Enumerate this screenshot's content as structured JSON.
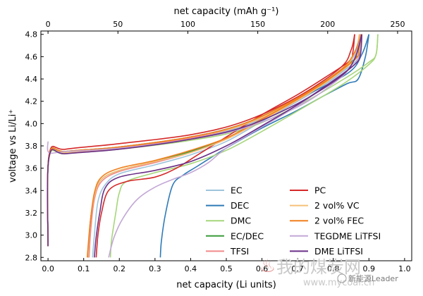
{
  "chart_data": {
    "type": "line",
    "xlabel": "net capacity (Li units)",
    "x2label": "net capacity (mAh g⁻¹)",
    "ylabel": "voltage vs Li/Li⁺",
    "xlim": [
      -0.02,
      1.02
    ],
    "ylim": [
      2.77,
      4.83
    ],
    "x2lim": [
      -5.1,
      260.1
    ],
    "xticks": [
      0.0,
      0.1,
      0.2,
      0.3,
      0.4,
      0.5,
      0.6,
      0.7,
      0.8,
      0.9,
      1.0
    ],
    "xtick_labels": [
      "0.0",
      "0.1",
      "0.2",
      "0.3",
      "0.4",
      "0.5",
      "0.6",
      "0.7",
      "0.8",
      "0.9",
      "1.0"
    ],
    "x2ticks": [
      0,
      50,
      100,
      150,
      200,
      250
    ],
    "x2tick_labels": [
      "0",
      "50",
      "100",
      "150",
      "200",
      "250"
    ],
    "yticks": [
      2.8,
      3.0,
      3.2,
      3.4,
      3.6,
      3.8,
      4.0,
      4.2,
      4.4,
      4.6,
      4.8
    ],
    "ytick_labels": [
      "2.8",
      "3.0",
      "3.2",
      "3.4",
      "3.6",
      "3.8",
      "4.0",
      "4.2",
      "4.4",
      "4.6",
      "4.8"
    ],
    "grid": false,
    "legend_position": "lower-right",
    "legend_columns": 2,
    "series": [
      {
        "name": "EC",
        "color": "#9ec4dc",
        "charge": [
          [
            0,
            2.9
          ],
          [
            0.003,
            3.7
          ],
          [
            0.05,
            3.74
          ],
          [
            0.2,
            3.78
          ],
          [
            0.4,
            3.87
          ],
          [
            0.55,
            3.98
          ],
          [
            0.7,
            4.2
          ],
          [
            0.82,
            4.45
          ],
          [
            0.86,
            4.62
          ],
          [
            0.88,
            4.8
          ]
        ],
        "discharge": [
          [
            0.88,
            4.8
          ],
          [
            0.875,
            4.65
          ],
          [
            0.86,
            4.55
          ],
          [
            0.78,
            4.36
          ],
          [
            0.7,
            4.2
          ],
          [
            0.6,
            4.02
          ],
          [
            0.5,
            3.84
          ],
          [
            0.4,
            3.72
          ],
          [
            0.3,
            3.63
          ],
          [
            0.2,
            3.55
          ],
          [
            0.16,
            3.45
          ],
          [
            0.14,
            3.3
          ],
          [
            0.13,
            3.0
          ],
          [
            0.125,
            2.8
          ]
        ]
      },
      {
        "name": "DEC",
        "color": "#2f7bb8",
        "charge": [
          [
            0,
            2.9
          ],
          [
            0.003,
            3.7
          ],
          [
            0.05,
            3.74
          ],
          [
            0.2,
            3.79
          ],
          [
            0.4,
            3.88
          ],
          [
            0.55,
            4.0
          ],
          [
            0.7,
            4.22
          ],
          [
            0.84,
            4.45
          ],
          [
            0.88,
            4.62
          ],
          [
            0.9,
            4.8
          ]
        ],
        "discharge": [
          [
            0.9,
            4.8
          ],
          [
            0.89,
            4.6
          ],
          [
            0.87,
            4.4
          ],
          [
            0.84,
            4.36
          ],
          [
            0.78,
            4.26
          ],
          [
            0.7,
            4.12
          ],
          [
            0.6,
            3.96
          ],
          [
            0.5,
            3.78
          ],
          [
            0.42,
            3.62
          ],
          [
            0.38,
            3.54
          ],
          [
            0.35,
            3.45
          ],
          [
            0.33,
            3.2
          ],
          [
            0.318,
            2.95
          ],
          [
            0.315,
            2.8
          ]
        ]
      },
      {
        "name": "DMC",
        "color": "#a6d67a",
        "charge": [
          [
            0,
            2.9
          ],
          [
            0.003,
            3.69
          ],
          [
            0.05,
            3.73
          ],
          [
            0.2,
            3.77
          ],
          [
            0.4,
            3.85
          ],
          [
            0.55,
            3.95
          ],
          [
            0.7,
            4.16
          ],
          [
            0.83,
            4.4
          ],
          [
            0.9,
            4.55
          ],
          [
            0.92,
            4.62
          ],
          [
            0.925,
            4.8
          ]
        ],
        "discharge": [
          [
            0.925,
            4.8
          ],
          [
            0.92,
            4.62
          ],
          [
            0.9,
            4.53
          ],
          [
            0.83,
            4.36
          ],
          [
            0.72,
            4.15
          ],
          [
            0.6,
            3.93
          ],
          [
            0.5,
            3.76
          ],
          [
            0.4,
            3.64
          ],
          [
            0.3,
            3.56
          ],
          [
            0.22,
            3.48
          ],
          [
            0.2,
            3.38
          ],
          [
            0.19,
            3.2
          ],
          [
            0.178,
            2.95
          ],
          [
            0.175,
            2.8
          ]
        ]
      },
      {
        "name": "EC/DEC",
        "color": "#3a9a3a",
        "charge": [
          [
            0,
            2.9
          ],
          [
            0.003,
            3.71
          ],
          [
            0.05,
            3.75
          ],
          [
            0.2,
            3.79
          ],
          [
            0.4,
            3.88
          ],
          [
            0.55,
            4.0
          ],
          [
            0.7,
            4.23
          ],
          [
            0.82,
            4.48
          ],
          [
            0.86,
            4.64
          ],
          [
            0.875,
            4.8
          ]
        ],
        "discharge": [
          [
            0.875,
            4.8
          ],
          [
            0.87,
            4.66
          ],
          [
            0.86,
            4.58
          ],
          [
            0.78,
            4.38
          ],
          [
            0.7,
            4.22
          ],
          [
            0.6,
            4.04
          ],
          [
            0.5,
            3.87
          ],
          [
            0.4,
            3.75
          ],
          [
            0.3,
            3.66
          ],
          [
            0.2,
            3.58
          ],
          [
            0.15,
            3.5
          ],
          [
            0.13,
            3.35
          ],
          [
            0.118,
            3.1
          ],
          [
            0.113,
            2.8
          ]
        ]
      },
      {
        "name": "TFSI",
        "color": "#f08a8a",
        "charge": [
          [
            0,
            2.9
          ],
          [
            0.003,
            3.7
          ],
          [
            0.05,
            3.74
          ],
          [
            0.2,
            3.78
          ],
          [
            0.4,
            3.87
          ],
          [
            0.55,
            3.99
          ],
          [
            0.7,
            4.21
          ],
          [
            0.82,
            4.47
          ],
          [
            0.86,
            4.64
          ],
          [
            0.875,
            4.8
          ]
        ],
        "discharge": [
          [
            0.875,
            4.8
          ],
          [
            0.87,
            4.66
          ],
          [
            0.86,
            4.57
          ],
          [
            0.78,
            4.37
          ],
          [
            0.7,
            4.21
          ],
          [
            0.6,
            4.03
          ],
          [
            0.5,
            3.86
          ],
          [
            0.4,
            3.74
          ],
          [
            0.3,
            3.65
          ],
          [
            0.2,
            3.57
          ],
          [
            0.15,
            3.48
          ],
          [
            0.13,
            3.32
          ],
          [
            0.12,
            3.05
          ],
          [
            0.115,
            2.8
          ]
        ]
      },
      {
        "name": "PC",
        "color": "#d62828",
        "charge": [
          [
            0,
            2.9
          ],
          [
            0.003,
            3.72
          ],
          [
            0.05,
            3.77
          ],
          [
            0.2,
            3.82
          ],
          [
            0.4,
            3.9
          ],
          [
            0.55,
            4.02
          ],
          [
            0.7,
            4.24
          ],
          [
            0.82,
            4.5
          ],
          [
            0.85,
            4.66
          ],
          [
            0.86,
            4.8
          ]
        ],
        "discharge": [
          [
            0.86,
            4.8
          ],
          [
            0.855,
            4.64
          ],
          [
            0.845,
            4.56
          ],
          [
            0.78,
            4.42
          ],
          [
            0.7,
            4.26
          ],
          [
            0.6,
            4.08
          ],
          [
            0.5,
            3.88
          ],
          [
            0.42,
            3.72
          ],
          [
            0.36,
            3.6
          ],
          [
            0.3,
            3.52
          ],
          [
            0.22,
            3.48
          ],
          [
            0.17,
            3.4
          ],
          [
            0.15,
            3.2
          ],
          [
            0.14,
            3.0
          ],
          [
            0.135,
            2.8
          ]
        ]
      },
      {
        "name": "2 vol% VC",
        "color": "#f5c078",
        "charge": [
          [
            0,
            2.9
          ],
          [
            0.003,
            3.7
          ],
          [
            0.05,
            3.74
          ],
          [
            0.2,
            3.79
          ],
          [
            0.4,
            3.88
          ],
          [
            0.55,
            3.99
          ],
          [
            0.7,
            4.22
          ],
          [
            0.82,
            4.47
          ],
          [
            0.86,
            4.63
          ],
          [
            0.873,
            4.8
          ]
        ],
        "discharge": [
          [
            0.873,
            4.8
          ],
          [
            0.868,
            4.66
          ],
          [
            0.86,
            4.57
          ],
          [
            0.78,
            4.37
          ],
          [
            0.7,
            4.21
          ],
          [
            0.6,
            4.03
          ],
          [
            0.5,
            3.86
          ],
          [
            0.4,
            3.74
          ],
          [
            0.3,
            3.66
          ],
          [
            0.2,
            3.58
          ],
          [
            0.15,
            3.5
          ],
          [
            0.13,
            3.35
          ],
          [
            0.118,
            3.1
          ],
          [
            0.112,
            2.8
          ]
        ]
      },
      {
        "name": "2 vol% FEC",
        "color": "#f07f1e",
        "charge": [
          [
            0,
            2.9
          ],
          [
            0.003,
            3.71
          ],
          [
            0.05,
            3.75
          ],
          [
            0.2,
            3.79
          ],
          [
            0.4,
            3.88
          ],
          [
            0.55,
            4.0
          ],
          [
            0.7,
            4.23
          ],
          [
            0.82,
            4.48
          ],
          [
            0.86,
            4.64
          ],
          [
            0.878,
            4.8
          ]
        ],
        "discharge": [
          [
            0.878,
            4.8
          ],
          [
            0.872,
            4.66
          ],
          [
            0.862,
            4.58
          ],
          [
            0.78,
            4.38
          ],
          [
            0.7,
            4.22
          ],
          [
            0.6,
            4.04
          ],
          [
            0.5,
            3.87
          ],
          [
            0.4,
            3.76
          ],
          [
            0.3,
            3.67
          ],
          [
            0.2,
            3.6
          ],
          [
            0.15,
            3.52
          ],
          [
            0.13,
            3.38
          ],
          [
            0.118,
            3.1
          ],
          [
            0.11,
            2.8
          ]
        ]
      },
      {
        "name": "TEGDME LiTFSI",
        "color": "#c3a8d6",
        "charge": [
          [
            0,
            3.84
          ],
          [
            0.003,
            3.74
          ],
          [
            0.05,
            3.75
          ],
          [
            0.2,
            3.78
          ],
          [
            0.4,
            3.86
          ],
          [
            0.55,
            3.96
          ],
          [
            0.7,
            4.15
          ],
          [
            0.8,
            4.36
          ],
          [
            0.85,
            4.52
          ],
          [
            0.88,
            4.8
          ]
        ],
        "discharge": [
          [
            0.88,
            4.8
          ],
          [
            0.875,
            4.62
          ],
          [
            0.85,
            4.5
          ],
          [
            0.78,
            4.34
          ],
          [
            0.7,
            4.16
          ],
          [
            0.6,
            3.97
          ],
          [
            0.5,
            3.78
          ],
          [
            0.45,
            3.65
          ],
          [
            0.4,
            3.56
          ],
          [
            0.35,
            3.5
          ],
          [
            0.3,
            3.43
          ],
          [
            0.25,
            3.32
          ],
          [
            0.21,
            3.15
          ],
          [
            0.185,
            2.98
          ],
          [
            0.17,
            2.8
          ]
        ]
      },
      {
        "name": "DME LiTFSI",
        "color": "#6a2f86",
        "charge": [
          [
            0,
            2.9
          ],
          [
            0.003,
            3.7
          ],
          [
            0.05,
            3.73
          ],
          [
            0.2,
            3.77
          ],
          [
            0.4,
            3.86
          ],
          [
            0.55,
            3.97
          ],
          [
            0.7,
            4.18
          ],
          [
            0.82,
            4.42
          ],
          [
            0.86,
            4.58
          ],
          [
            0.88,
            4.8
          ]
        ],
        "discharge": [
          [
            0.88,
            4.8
          ],
          [
            0.876,
            4.62
          ],
          [
            0.86,
            4.53
          ],
          [
            0.78,
            4.34
          ],
          [
            0.7,
            4.17
          ],
          [
            0.6,
            3.98
          ],
          [
            0.5,
            3.8
          ],
          [
            0.4,
            3.66
          ],
          [
            0.3,
            3.58
          ],
          [
            0.2,
            3.52
          ],
          [
            0.16,
            3.42
          ],
          [
            0.145,
            3.2
          ],
          [
            0.135,
            2.98
          ],
          [
            0.13,
            2.8
          ]
        ]
      }
    ]
  },
  "watermark": {
    "line1": "我的煤炭网",
    "line2": "www.mycoal.cn",
    "badge": "新能源Leader"
  }
}
